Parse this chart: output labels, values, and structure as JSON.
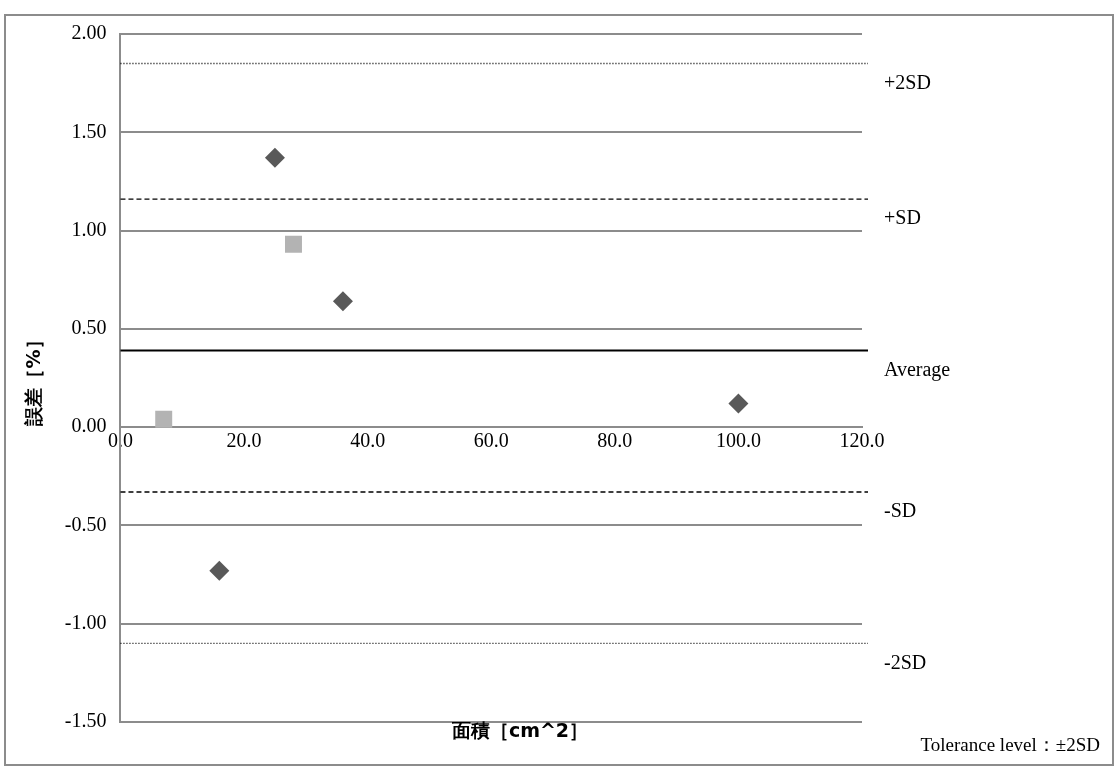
{
  "chart_data": {
    "type": "scatter",
    "xlabel": "面積［cm^2］",
    "ylabel": "誤差［%］",
    "series": [
      {
        "color": "#595959",
        "marker": "diamond",
        "x": [
          25,
          36,
          16,
          100
        ],
        "values": [
          1.37,
          0.64,
          -0.73,
          0.12
        ]
      },
      {
        "color": "#b3b3b3",
        "marker": "square",
        "x": [
          28,
          7
        ],
        "values": [
          0.93,
          0.04
        ]
      }
    ],
    "xlim": [
      0,
      120
    ],
    "xticks": [
      {
        "value": 0,
        "label": "0.0"
      },
      {
        "value": 20,
        "label": "20.0"
      },
      {
        "value": 40,
        "label": "40.0"
      },
      {
        "value": 60,
        "label": "60.0"
      },
      {
        "value": 80,
        "label": "80.0"
      },
      {
        "value": 100,
        "label": "100.0"
      },
      {
        "value": 120,
        "label": "120.0"
      }
    ],
    "ylim": [
      -1.5,
      2
    ],
    "yticks": [
      {
        "value": -1.5,
        "label": "-1.50"
      },
      {
        "value": -1,
        "label": "-1.00"
      },
      {
        "value": -0.5,
        "label": "-0.50"
      },
      {
        "value": 0,
        "label": "0.00"
      },
      {
        "value": 0.5,
        "label": "0.50"
      },
      {
        "value": 1,
        "label": "1.00"
      },
      {
        "value": 1.5,
        "label": "1.50"
      },
      {
        "value": 2,
        "label": "2.00"
      }
    ],
    "grid": "y",
    "ref_lines": [
      {
        "axis": "y",
        "value": 1.85,
        "label": "+2SD",
        "line_style": "dotted",
        "color": "#000000"
      },
      {
        "axis": "y",
        "value": 1.16,
        "label": "+SD",
        "line_style": "dashed",
        "color": "#000000"
      },
      {
        "axis": "y",
        "value": 0.39,
        "label": "Average",
        "line_style": "solid",
        "color": "#000000"
      },
      {
        "axis": "y",
        "value": -0.33,
        "label": "-SD",
        "line_style": "dashed",
        "color": "#000000"
      },
      {
        "axis": "y",
        "value": -1.1,
        "label": "-2SD",
        "line_style": "dotted",
        "color": "#000000"
      }
    ],
    "annotations": [
      "Tolerance level：±2SD"
    ]
  }
}
